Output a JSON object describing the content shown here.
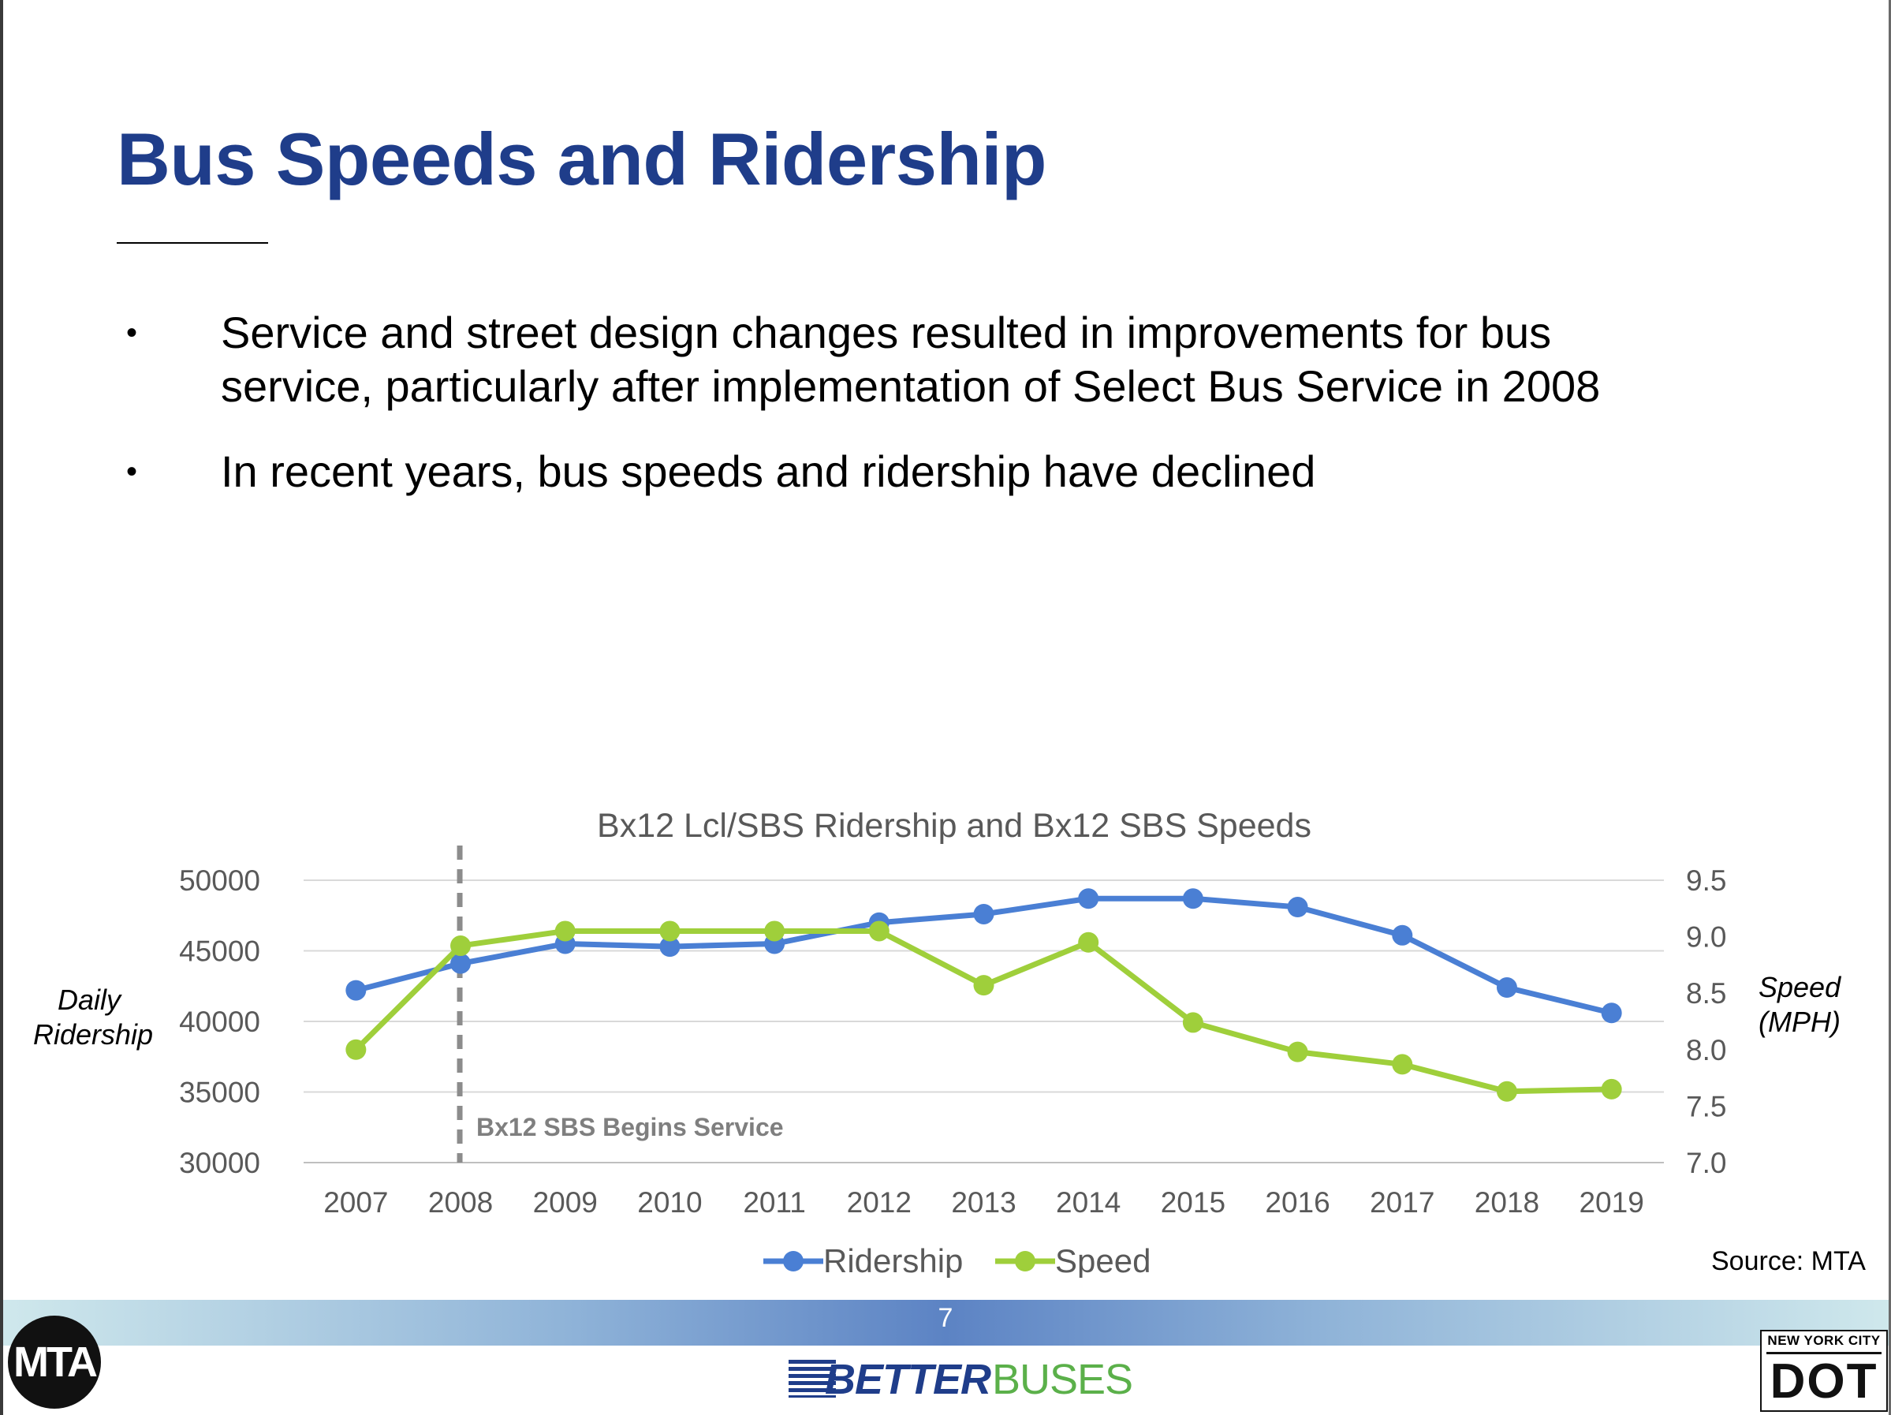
{
  "title": "Bus Speeds and Ridership",
  "bullets": [
    "Service and street design changes resulted in improvements for bus service, particularly after implementation of Select Bus Service in 2008",
    "In recent years, bus speeds and ridership have declined"
  ],
  "bullet_symbol": "•",
  "source": "Source: MTA",
  "page_number": "7",
  "footer": {
    "mta_logo": "MTA",
    "better": "BETTER",
    "buses": "BUSES",
    "dot_top": "NEW YORK CITY",
    "dot_big": "DOT"
  },
  "colors": {
    "title": "#1f3d8a",
    "ridership": "#4a7fd4",
    "speed": "#9fcf3b",
    "annotation": "#8c8c8c"
  },
  "chart_data": {
    "type": "line",
    "title": "Bx12 Lcl/SBS Ridership and Bx12 SBS Speeds",
    "categories": [
      "2007",
      "2008",
      "2009",
      "2010",
      "2011",
      "2012",
      "2013",
      "2014",
      "2015",
      "2016",
      "2017",
      "2018",
      "2019"
    ],
    "series": [
      {
        "name": "Ridership",
        "axis": "left",
        "color": "#4a7fd4",
        "values": [
          42200,
          44100,
          45500,
          45300,
          45500,
          47000,
          47600,
          48700,
          48700,
          48100,
          46100,
          42400,
          40600
        ]
      },
      {
        "name": "Speed",
        "axis": "right",
        "color": "#9fcf3b",
        "values": [
          8.0,
          8.92,
          9.05,
          9.05,
          9.05,
          9.05,
          8.57,
          8.95,
          8.24,
          7.98,
          7.87,
          7.63,
          7.65
        ]
      }
    ],
    "ylabel": "Daily Ridership",
    "ylabel_lines": [
      "Daily",
      "Ridership"
    ],
    "y2label": "Speed (MPH)",
    "y2label_lines": [
      "Speed",
      "(MPH)"
    ],
    "ylim": [
      30000,
      50000
    ],
    "yticks": [
      "50000",
      "45000",
      "40000",
      "35000",
      "30000"
    ],
    "y2lim": [
      7.0,
      9.5
    ],
    "y2ticks": [
      "9.5",
      "9.0",
      "8.5",
      "8.0",
      "7.5",
      "7.0"
    ],
    "grid": true,
    "legend_position": "bottom",
    "annotation": {
      "text": "Bx12 SBS Begins Service",
      "at_category": "2008",
      "style": "dashed vertical line"
    }
  }
}
